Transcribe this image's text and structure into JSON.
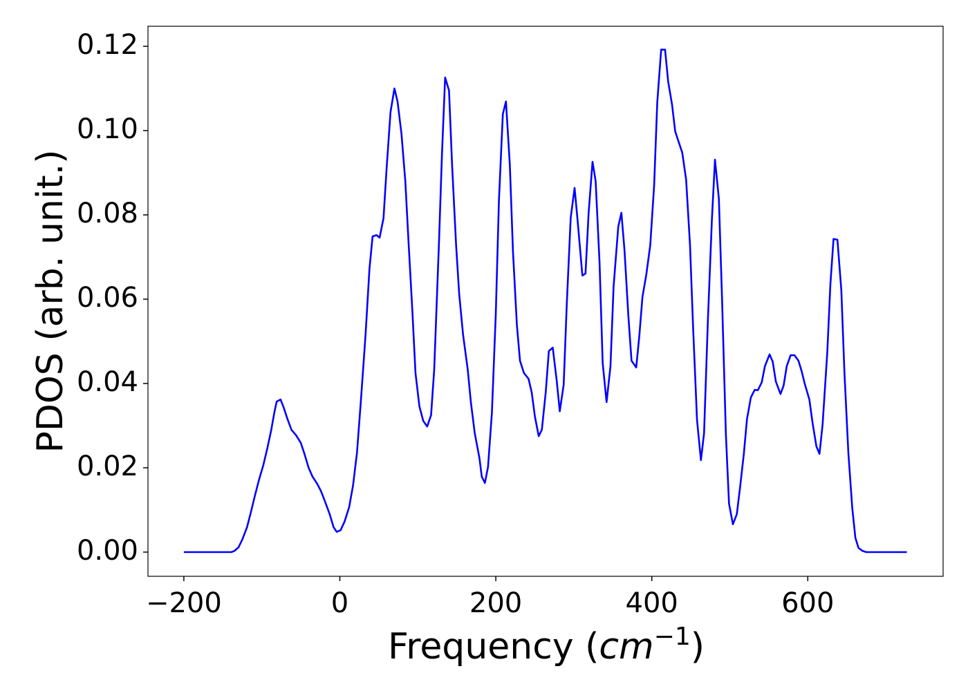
{
  "chart_data": {
    "type": "line",
    "xlabel": {
      "prefix": "Frequency (",
      "unit": "cm",
      "exp": "−1",
      "suffix": ")"
    },
    "ylabel": "PDOS (arb. unit.)",
    "color": "#0000ff",
    "x": [
      -200,
      -139,
      -135,
      -130,
      -125,
      -119,
      -114,
      -109,
      -104,
      -98,
      -93,
      -88,
      -84,
      -81,
      -76,
      -72,
      -67,
      -62,
      -56,
      -50,
      -45,
      -40,
      -35,
      -29,
      -24,
      -19,
      -13,
      -8,
      -4,
      1,
      6,
      12,
      17,
      22,
      27,
      33,
      38,
      42,
      47,
      51,
      56,
      60,
      65,
      70,
      74,
      79,
      84,
      88,
      93,
      97,
      102,
      107,
      112,
      117,
      121,
      127,
      131,
      135,
      140,
      144,
      149,
      153,
      158,
      164,
      168,
      173,
      179,
      182,
      186,
      190,
      195,
      200,
      204,
      209,
      213,
      218,
      222,
      227,
      231,
      236,
      242,
      246,
      250,
      255,
      259,
      264,
      268,
      273,
      278,
      282,
      287,
      291,
      296,
      301,
      305,
      311,
      315,
      319,
      324,
      328,
      333,
      337,
      342,
      347,
      351,
      357,
      361,
      365,
      370,
      374,
      380,
      384,
      388,
      393,
      398,
      403,
      407,
      412,
      417,
      421,
      426,
      430,
      435,
      439,
      444,
      449,
      453,
      458,
      463,
      467,
      472,
      477,
      481,
      486,
      490,
      495,
      499,
      504,
      509,
      513,
      518,
      522,
      527,
      532,
      536,
      541,
      545,
      551,
      555,
      559,
      565,
      569,
      573,
      578,
      583,
      588,
      592,
      596,
      602,
      606,
      611,
      615,
      619,
      625,
      629,
      633,
      638,
      643,
      647,
      652,
      657,
      661,
      665,
      670,
      675,
      727
    ],
    "values": [
      0,
      0,
      0.0003,
      0.0011,
      0.003,
      0.0059,
      0.0095,
      0.0133,
      0.0169,
      0.0207,
      0.0246,
      0.0289,
      0.0331,
      0.0357,
      0.0362,
      0.0343,
      0.0315,
      0.029,
      0.0277,
      0.0259,
      0.0231,
      0.02,
      0.0179,
      0.0162,
      0.0144,
      0.012,
      0.009,
      0.0059,
      0.0048,
      0.0052,
      0.0072,
      0.0107,
      0.0159,
      0.0236,
      0.0359,
      0.0516,
      0.0672,
      0.0749,
      0.0752,
      0.0746,
      0.0792,
      0.0911,
      0.1044,
      0.11,
      0.1069,
      0.0993,
      0.0879,
      0.0739,
      0.0572,
      0.0425,
      0.0346,
      0.0311,
      0.0298,
      0.0325,
      0.0433,
      0.0728,
      0.0946,
      0.1126,
      0.1095,
      0.0916,
      0.0731,
      0.0613,
      0.0516,
      0.0433,
      0.0356,
      0.0282,
      0.0223,
      0.0179,
      0.0164,
      0.0202,
      0.0331,
      0.0567,
      0.0834,
      0.1039,
      0.1069,
      0.0918,
      0.0713,
      0.0539,
      0.0454,
      0.0425,
      0.0411,
      0.0379,
      0.0323,
      0.0275,
      0.029,
      0.0379,
      0.0477,
      0.0485,
      0.0408,
      0.0334,
      0.0397,
      0.0589,
      0.0793,
      0.0864,
      0.0784,
      0.0656,
      0.0661,
      0.0805,
      0.0926,
      0.088,
      0.0687,
      0.0449,
      0.0356,
      0.0441,
      0.063,
      0.0772,
      0.0805,
      0.0716,
      0.0559,
      0.0454,
      0.0438,
      0.0513,
      0.0605,
      0.0659,
      0.0728,
      0.087,
      0.1067,
      0.1192,
      0.1192,
      0.1116,
      0.1061,
      0.0998,
      0.097,
      0.0948,
      0.0884,
      0.0728,
      0.0531,
      0.0313,
      0.0218,
      0.0282,
      0.0554,
      0.0787,
      0.0931,
      0.0838,
      0.0605,
      0.0279,
      0.0115,
      0.0066,
      0.009,
      0.0151,
      0.0233,
      0.0315,
      0.0367,
      0.0385,
      0.0384,
      0.0403,
      0.0441,
      0.0469,
      0.0452,
      0.0405,
      0.0375,
      0.0395,
      0.0441,
      0.0467,
      0.0467,
      0.0454,
      0.043,
      0.04,
      0.0362,
      0.0308,
      0.0251,
      0.0233,
      0.0303,
      0.0474,
      0.0636,
      0.0743,
      0.0741,
      0.0621,
      0.0425,
      0.0236,
      0.0105,
      0.0034,
      0.001,
      0.0003,
      0,
      0
    ],
    "xlim": [
      -246,
      773.5
    ],
    "ylim": [
      -0.00574,
      0.12475
    ],
    "xticks": [
      {
        "value": -200,
        "label": "−200"
      },
      0,
      200,
      400,
      600
    ],
    "yticks": [
      {
        "value": 0,
        "label": "0.00"
      },
      {
        "value": 0.02,
        "label": "0.02"
      },
      {
        "value": 0.04,
        "label": "0.04"
      },
      {
        "value": 0.06,
        "label": "0.06"
      },
      {
        "value": 0.08,
        "label": "0.08"
      },
      {
        "value": 0.1,
        "label": "0.10"
      },
      {
        "value": 0.12,
        "label": "0.12"
      }
    ],
    "grid": false
  }
}
